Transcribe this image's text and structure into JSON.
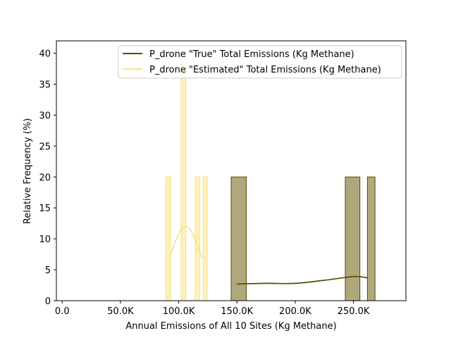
{
  "chart_data": {
    "type": "histogram",
    "xlabel": "Annual Emissions of All 10 Sites (Kg Methane)",
    "ylabel": "Relative Frequency (%)",
    "xlim": [
      -5000,
      295000
    ],
    "ylim": [
      0,
      42
    ],
    "x_ticks": [
      {
        "value": 0,
        "label": "0.0"
      },
      {
        "value": 50000,
        "label": "50.0K"
      },
      {
        "value": 100000,
        "label": "100.0K"
      },
      {
        "value": 150000,
        "label": "150.0K"
      },
      {
        "value": 200000,
        "label": "200.0K"
      },
      {
        "value": 250000,
        "label": "250.0K"
      }
    ],
    "y_ticks": [
      0,
      5,
      10,
      15,
      20,
      25,
      30,
      35,
      40
    ],
    "grid": false,
    "legend_location": "top-right",
    "series": [
      {
        "name": "P_drone \"True\" Total Emissions (Kg Methane)",
        "color": "#5c4a00",
        "fill": "#b0a77e",
        "bins": [
          {
            "x0": 145000,
            "x1": 158000,
            "value": 20
          },
          {
            "x0": 243000,
            "x1": 255500,
            "value": 20
          },
          {
            "x0": 262000,
            "x1": 268500,
            "value": 20
          }
        ],
        "kde": [
          [
            150000,
            2.7
          ],
          [
            175000,
            2.8
          ],
          [
            200000,
            2.8
          ],
          [
            225000,
            3.3
          ],
          [
            250000,
            3.9
          ],
          [
            262000,
            3.7
          ]
        ]
      },
      {
        "name": "P_drone \"Estimated\" Total Emissions (Kg Methane)",
        "color": "#f6e08a",
        "fill": "#fdf1b8",
        "bins": [
          {
            "x0": 89000,
            "x1": 93000,
            "value": 20
          },
          {
            "x0": 102000,
            "x1": 106000,
            "value": 40
          },
          {
            "x0": 114000,
            "x1": 118000,
            "value": 20
          },
          {
            "x0": 121000,
            "x1": 124500,
            "value": 20
          }
        ],
        "kde": [
          [
            92000,
            7
          ],
          [
            97000,
            9.5
          ],
          [
            102000,
            11.5
          ],
          [
            106000,
            12
          ],
          [
            110000,
            11.5
          ],
          [
            115000,
            9.5
          ],
          [
            120000,
            7
          ]
        ]
      }
    ]
  }
}
